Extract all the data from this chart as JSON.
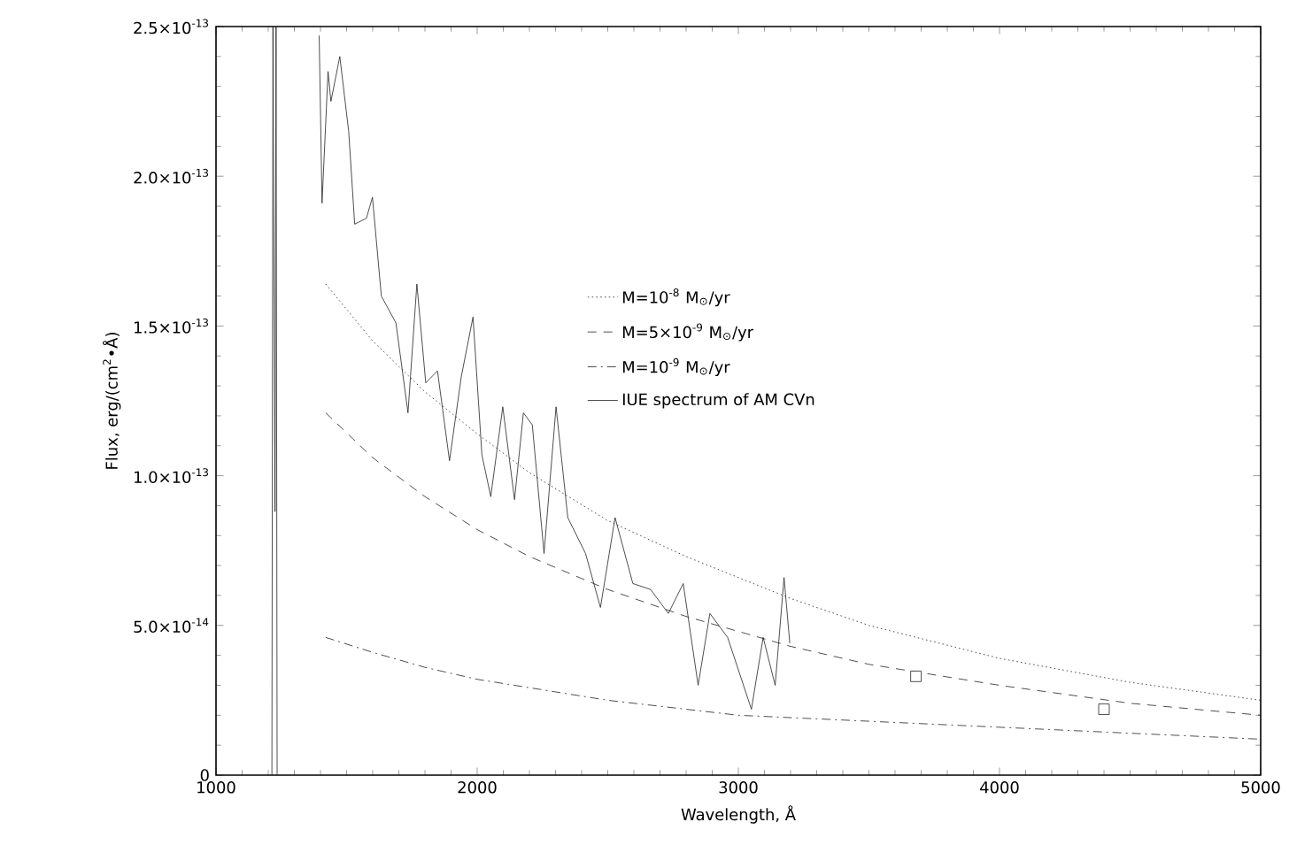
{
  "chart_data": {
    "type": "line",
    "xlabel": "Wavelength, Å",
    "ylabel": "Flux, erg/(cm$^{2}$•Å)",
    "xlim": [
      1000,
      5000
    ],
    "xticks": [
      1000,
      2000,
      3000,
      4000,
      5000
    ],
    "ylim": [
      0,
      2.5e-13
    ],
    "yticks": [
      {
        "value": 0,
        "label": "0"
      },
      {
        "value": 5e-14,
        "label": "5.0×10$^{-14}$"
      },
      {
        "value": 1e-13,
        "label": "1.0×10$^{-13}$"
      },
      {
        "value": 1.5e-13,
        "label": "1.5×10$^{-13}$"
      },
      {
        "value": 2e-13,
        "label": "2.0×10$^{-13}$"
      },
      {
        "value": 2.5e-13,
        "label": "2.5×10$^{-13}$"
      }
    ],
    "legend": "right",
    "grid": false,
    "series": [
      {
        "name": "M=10$^{-8}$ M$_{⊙}$/yr",
        "color": "#222222",
        "line_style": "dotted",
        "x": [
          1420,
          1600,
          1800,
          2000,
          2200,
          2500,
          2800,
          3000,
          3200,
          3500,
          4000,
          4500,
          5000
        ],
        "values": [
          1.64e-13,
          1.45e-13,
          1.28e-13,
          1.14e-13,
          1.01e-13,
          8.5e-14,
          7.3e-14,
          6.6e-14,
          5.9e-14,
          5e-14,
          3.9e-14,
          3.1e-14,
          2.5e-14
        ]
      },
      {
        "name": "M=5×10$^{-9}$ M$_{⊙}$/yr",
        "color": "#222222",
        "line_style": "dashed",
        "x": [
          1420,
          1600,
          1800,
          2000,
          2200,
          2500,
          2800,
          3000,
          3200,
          3500,
          4000,
          4500,
          5000
        ],
        "values": [
          1.21e-13,
          1.06e-13,
          9.3e-14,
          8.2e-14,
          7.3e-14,
          6.2e-14,
          5.3e-14,
          4.8e-14,
          4.3e-14,
          3.7e-14,
          3e-14,
          2.4e-14,
          2e-14
        ]
      },
      {
        "name": "M=10$^{-9}$ M$_{⊙}$/yr",
        "color": "#222222",
        "line_style": "dashdot",
        "x": [
          1420,
          1600,
          1800,
          2000,
          2500,
          3000,
          3500,
          4000,
          4500,
          5000
        ],
        "values": [
          4.6e-14,
          4.1e-14,
          3.6e-14,
          3.2e-14,
          2.5e-14,
          2e-14,
          1.8e-14,
          1.6e-14,
          1.4e-14,
          1.2e-14
        ]
      },
      {
        "name": "IUE spectrum of AM CVn",
        "color": "#222222",
        "line_style": "solid",
        "x": [
          1214,
          1218,
          1226,
          1230,
          1234,
          1300,
          1395,
          1406,
          1429,
          1440,
          1474,
          1508,
          1531,
          1576,
          1599,
          1633,
          1689,
          1735,
          1769,
          1803,
          1848,
          1894,
          1939,
          1984,
          2018,
          2052,
          2098,
          2143,
          2177,
          2211,
          2256,
          2302,
          2347,
          2415,
          2472,
          2528,
          2596,
          2664,
          2732,
          2789,
          2846,
          2891,
          2959,
          3050,
          3095,
          3141,
          3175,
          3197
        ],
        "values": [
          0,
          2.5e-13,
          8.8e-14,
          2.5e-13,
          0,
          null,
          2.47e-13,
          1.91e-13,
          2.35e-13,
          2.25e-13,
          2.4e-13,
          2.15e-13,
          1.84e-13,
          1.86e-13,
          1.93e-13,
          1.6e-13,
          1.51e-13,
          1.21e-13,
          1.64e-13,
          1.31e-13,
          1.35e-13,
          1.05e-13,
          1.33e-13,
          1.53e-13,
          1.07e-13,
          9.3e-14,
          1.23e-13,
          9.2e-14,
          1.21e-13,
          1.17e-13,
          7.4e-14,
          1.23e-13,
          8.6e-14,
          7.4e-14,
          5.6e-14,
          8.6e-14,
          6.4e-14,
          6.2e-14,
          5.4e-14,
          6.4e-14,
          3e-14,
          5.4e-14,
          4.6e-14,
          2.2e-14,
          4.6e-14,
          3e-14,
          6.6e-14,
          4.4e-14
        ]
      },
      {
        "type": "scatter",
        "marker": "square",
        "color": "#222222",
        "x": [
          3680,
          4400
        ],
        "values": [
          3.3e-14,
          2.2e-14
        ]
      }
    ]
  }
}
